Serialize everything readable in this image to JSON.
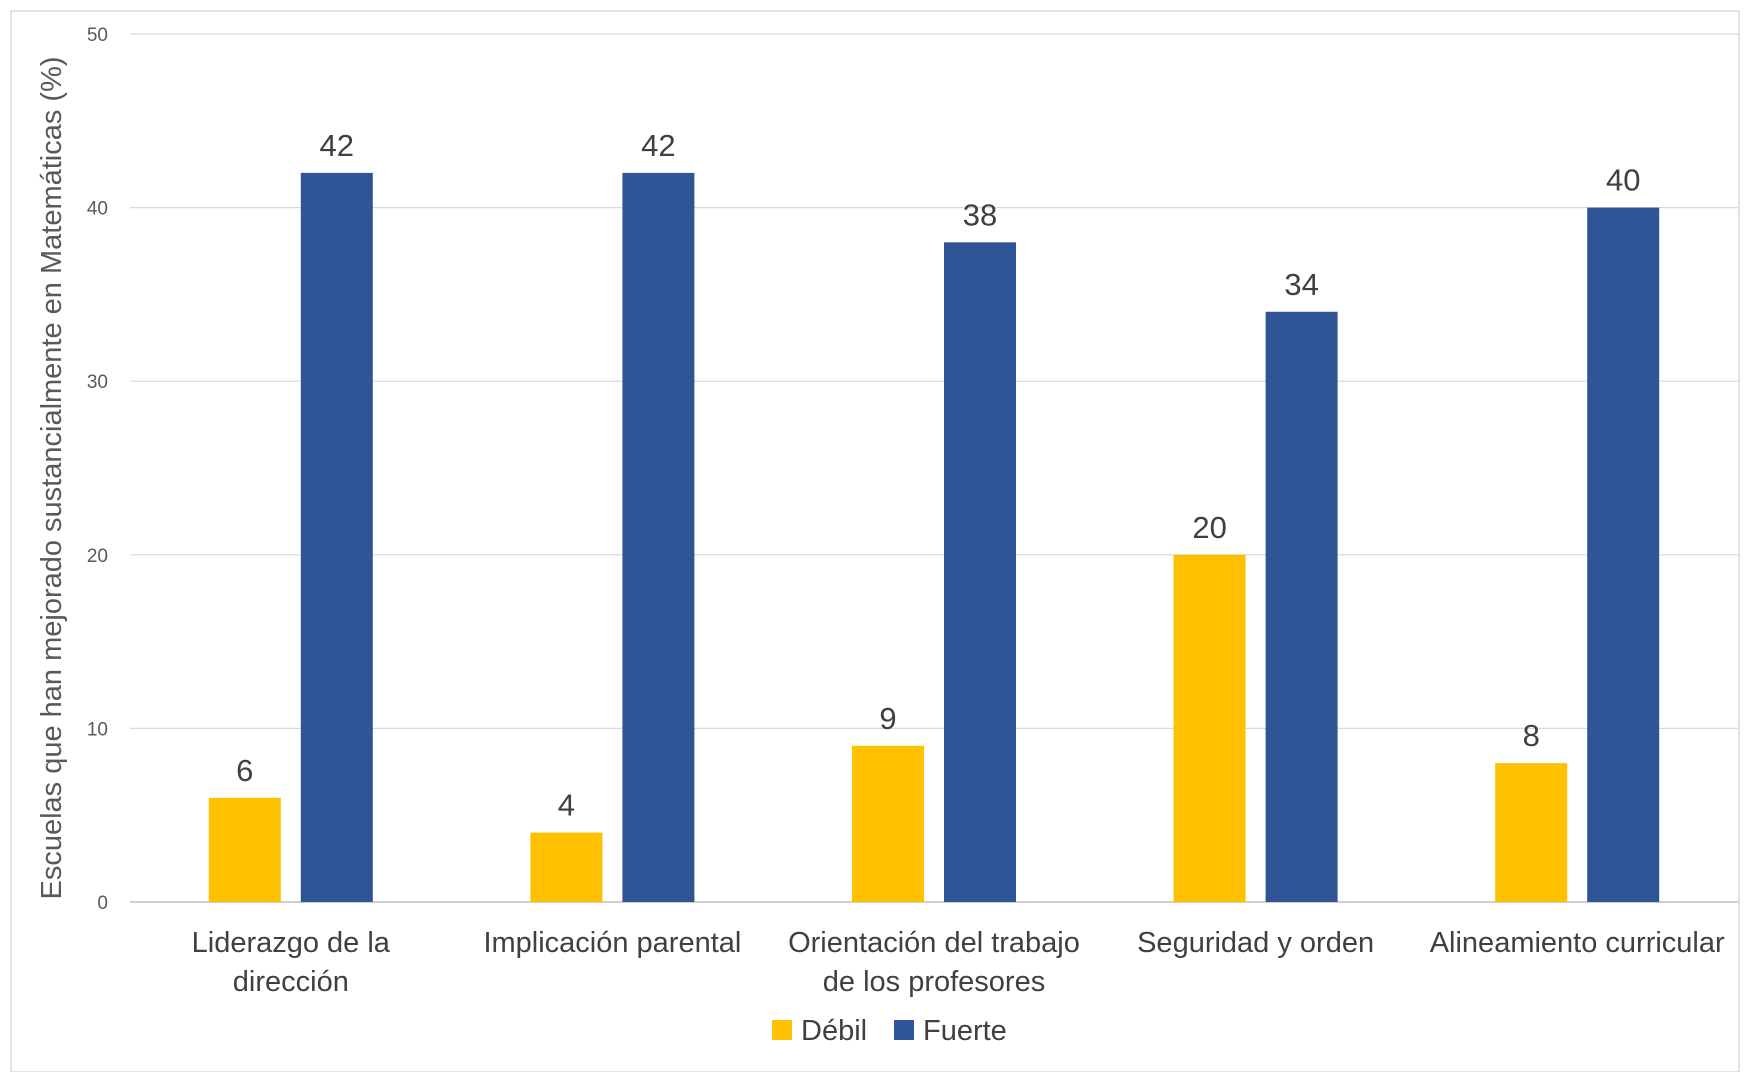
{
  "chart_data": {
    "type": "bar",
    "ylabel": "Escuelas que han mejorado sustancialmente en Matemáticas (%)",
    "xlabel": "",
    "ylim": [
      0,
      50
    ],
    "yticks": [
      0,
      10,
      20,
      30,
      40,
      50
    ],
    "grid": true,
    "legend_position": "bottom",
    "categories": [
      [
        "Liderazgo de la",
        "dirección"
      ],
      [
        "Implicación parental"
      ],
      [
        "Orientación del trabajo",
        "de los profesores"
      ],
      [
        "Seguridad y orden"
      ],
      [
        "Alineamiento curricular"
      ]
    ],
    "series": [
      {
        "name": "Débil",
        "color": "#FFC000",
        "values": [
          6,
          4,
          9,
          20,
          8
        ]
      },
      {
        "name": "Fuerte",
        "color": "#2F5597",
        "values": [
          42,
          42,
          38,
          34,
          40
        ]
      }
    ]
  }
}
